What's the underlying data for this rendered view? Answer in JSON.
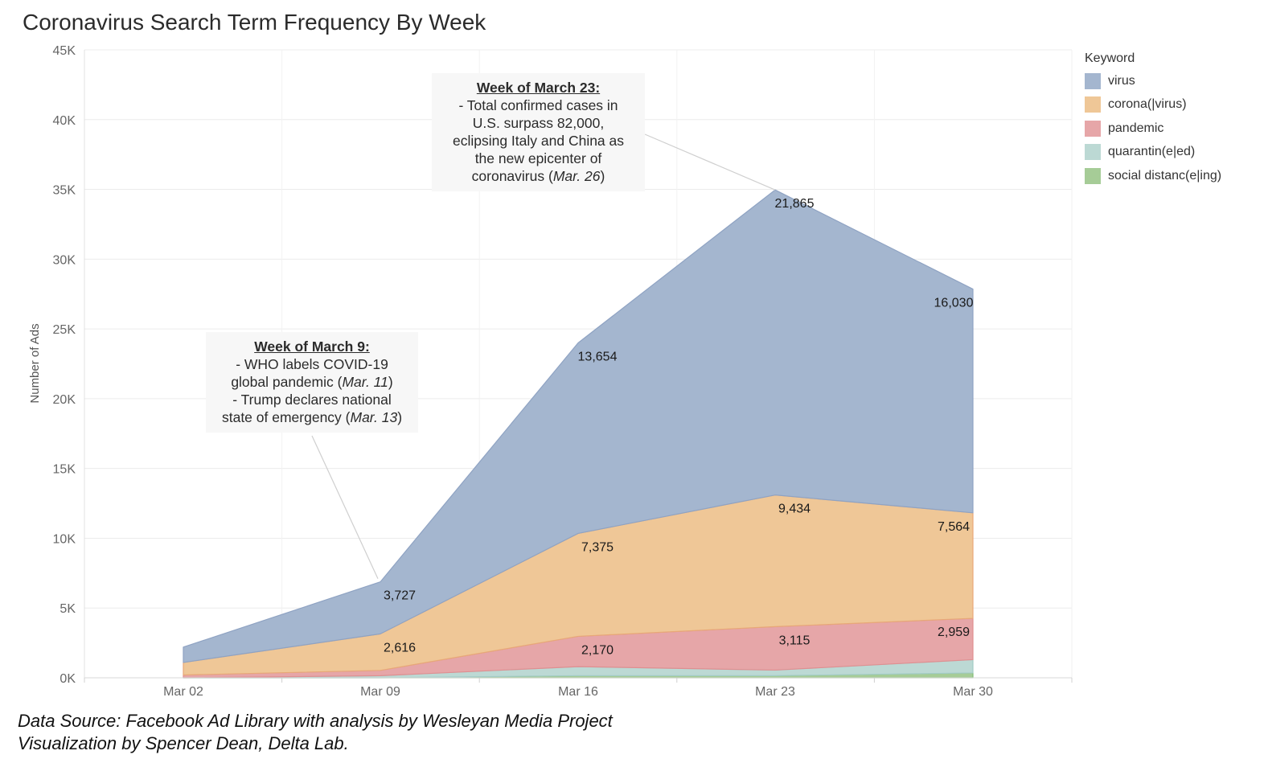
{
  "title": "Coronavirus Search Term Frequency By Week",
  "legend": {
    "title": "Keyword"
  },
  "annotations": [
    {
      "heading": "Week of March 23:",
      "lines": [
        "- Total confirmed cases in",
        "U.S. surpass 82,000,",
        "eclipsing Italy and China as",
        "the new epicenter of"
      ],
      "last_line_prefix": "coronavirus (",
      "last_line_italic": "Mar. 26",
      "last_line_suffix": ")"
    },
    {
      "heading": "Week of March 9:",
      "line1": "- WHO labels COVID-19",
      "line2_prefix": "global pandemic (",
      "line2_italic": "Mar. 11",
      "line2_suffix": ")",
      "line3": "- Trump  declares national",
      "line4_prefix": "state of emergency (",
      "line4_italic": "Mar. 13",
      "line4_suffix": ")"
    }
  ],
  "source_line1": "Data Source: Facebook Ad Library with analysis by Wesleyan Media Project",
  "source_line2": "Visualization by Spencer Dean, Delta Lab.",
  "chart_data": {
    "type": "area",
    "stacked": true,
    "title": "Coronavirus Search Term Frequency By Week",
    "xlabel": "",
    "ylabel": "Number of Ads",
    "ylim": [
      0,
      45000
    ],
    "ytick_labels": [
      "0K",
      "5K",
      "10K",
      "15K",
      "20K",
      "25K",
      "30K",
      "35K",
      "40K",
      "45K"
    ],
    "categories": [
      "Mar 02",
      "Mar 09",
      "Mar 16",
      "Mar 23",
      "Mar 30"
    ],
    "grid": true,
    "legend_position": "right",
    "series": [
      {
        "name": "social distanc(e|ing)",
        "color": "#a6cc97",
        "values": [
          0,
          0,
          150,
          150,
          350
        ]
      },
      {
        "name": "quarantin(e|ed)",
        "color": "#bcd9d4",
        "values": [
          0,
          150,
          650,
          400,
          950
        ]
      },
      {
        "name": "pandemic",
        "color": "#e6a6a8",
        "values": [
          200,
          380,
          2170,
          3115,
          2959
        ]
      },
      {
        "name": "corona(|virus)",
        "color": "#efc797",
        "values": [
          900,
          2616,
          7375,
          9434,
          7564
        ]
      },
      {
        "name": "virus",
        "color": "#a4b6cf",
        "values": [
          1100,
          3727,
          13654,
          21865,
          16030
        ]
      }
    ],
    "data_labels": [
      {
        "series": "virus",
        "index": 1,
        "text": "3,727"
      },
      {
        "series": "virus",
        "index": 2,
        "text": "13,654"
      },
      {
        "series": "virus",
        "index": 3,
        "text": "21,865"
      },
      {
        "series": "virus",
        "index": 4,
        "text": "16,030"
      },
      {
        "series": "corona(|virus)",
        "index": 1,
        "text": "2,616"
      },
      {
        "series": "corona(|virus)",
        "index": 2,
        "text": "7,375"
      },
      {
        "series": "corona(|virus)",
        "index": 3,
        "text": "9,434"
      },
      {
        "series": "corona(|virus)",
        "index": 4,
        "text": "7,564"
      },
      {
        "series": "pandemic",
        "index": 2,
        "text": "2,170"
      },
      {
        "series": "pandemic",
        "index": 3,
        "text": "3,115"
      },
      {
        "series": "pandemic",
        "index": 4,
        "text": "2,959"
      }
    ],
    "legend_order": [
      "virus",
      "corona(|virus)",
      "pandemic",
      "quarantin(e|ed)",
      "social distanc(e|ing)"
    ]
  }
}
